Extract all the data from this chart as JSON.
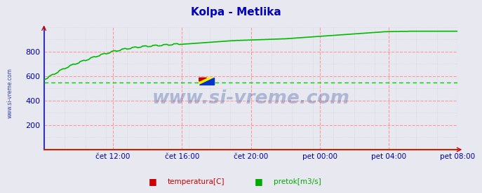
{
  "title": "Kolpa - Metlika",
  "title_color": "#0000bb",
  "fig_bg_color": "#e8e8f0",
  "plot_bg_color": "#e8e8f0",
  "ylim": [
    0,
    1000
  ],
  "ytick_vals": [
    200,
    400,
    600,
    800
  ],
  "xtick_labels": [
    "čet 12:00",
    "čet 16:00",
    "čet 20:00",
    "pet 00:00",
    "pet 04:00",
    "pet 08:00"
  ],
  "grid_major_color": "#ff9999",
  "grid_minor_color": "#ccccdd",
  "n_points": 240,
  "pretok_values": [
    570,
    575,
    582,
    590,
    598,
    606,
    614,
    622,
    630,
    638,
    645,
    652,
    659,
    666,
    672,
    678,
    684,
    690,
    696,
    701,
    706,
    711,
    716,
    721,
    726,
    731,
    736,
    741,
    746,
    751,
    756,
    761,
    765,
    769,
    773,
    777,
    781,
    785,
    789,
    793,
    797,
    800,
    803,
    806,
    809,
    812,
    815,
    818,
    820,
    822,
    824,
    826,
    828,
    830,
    832,
    834,
    836,
    837,
    838,
    839,
    840,
    841,
    842,
    843,
    844,
    845,
    846,
    847,
    848,
    849,
    850,
    851,
    852,
    853,
    854,
    855,
    856,
    857,
    858,
    859,
    860,
    861,
    862,
    863,
    864,
    865,
    866,
    867,
    868,
    869,
    870,
    871,
    872,
    873,
    874,
    875,
    876,
    877,
    878,
    879,
    880,
    881,
    882,
    883,
    884,
    885,
    886,
    887,
    888,
    889,
    889,
    890,
    891,
    891,
    892,
    892,
    893,
    893,
    894,
    894,
    895,
    895,
    896,
    896,
    897,
    897,
    898,
    898,
    899,
    899,
    900,
    900,
    901,
    901,
    902,
    902,
    903,
    903,
    904,
    904,
    905,
    906,
    907,
    908,
    909,
    910,
    911,
    912,
    913,
    914,
    915,
    916,
    917,
    918,
    919,
    920,
    921,
    922,
    923,
    924,
    925,
    926,
    927,
    928,
    929,
    930,
    931,
    932,
    933,
    934,
    935,
    936,
    937,
    938,
    939,
    940,
    941,
    942,
    943,
    944,
    945,
    946,
    947,
    948,
    949,
    950,
    951,
    952,
    953,
    954,
    955,
    956,
    957,
    958,
    959,
    960,
    961,
    962,
    962,
    963,
    963,
    963,
    964,
    964,
    964,
    964,
    965,
    965,
    965,
    965,
    965,
    966,
    966,
    966,
    966,
    966,
    966,
    966,
    966,
    966,
    966,
    966,
    966,
    966,
    966,
    966,
    966,
    966,
    966,
    966,
    966,
    966,
    966,
    966,
    966,
    966,
    966,
    966,
    966,
    966
  ],
  "temperatura_value": 550,
  "legend_items": [
    {
      "label": "temperatura[C]",
      "color": "#cc0000"
    },
    {
      "label": "pretok[m3/s]",
      "color": "#00aa00"
    }
  ],
  "watermark_text": "www.si-vreme.com",
  "watermark_color": "#1a3a8a",
  "watermark_alpha": 0.28,
  "side_text": "www.si-vreme.com",
  "spine_left_color": "#3333bb",
  "spine_bottom_color": "#cc2200"
}
